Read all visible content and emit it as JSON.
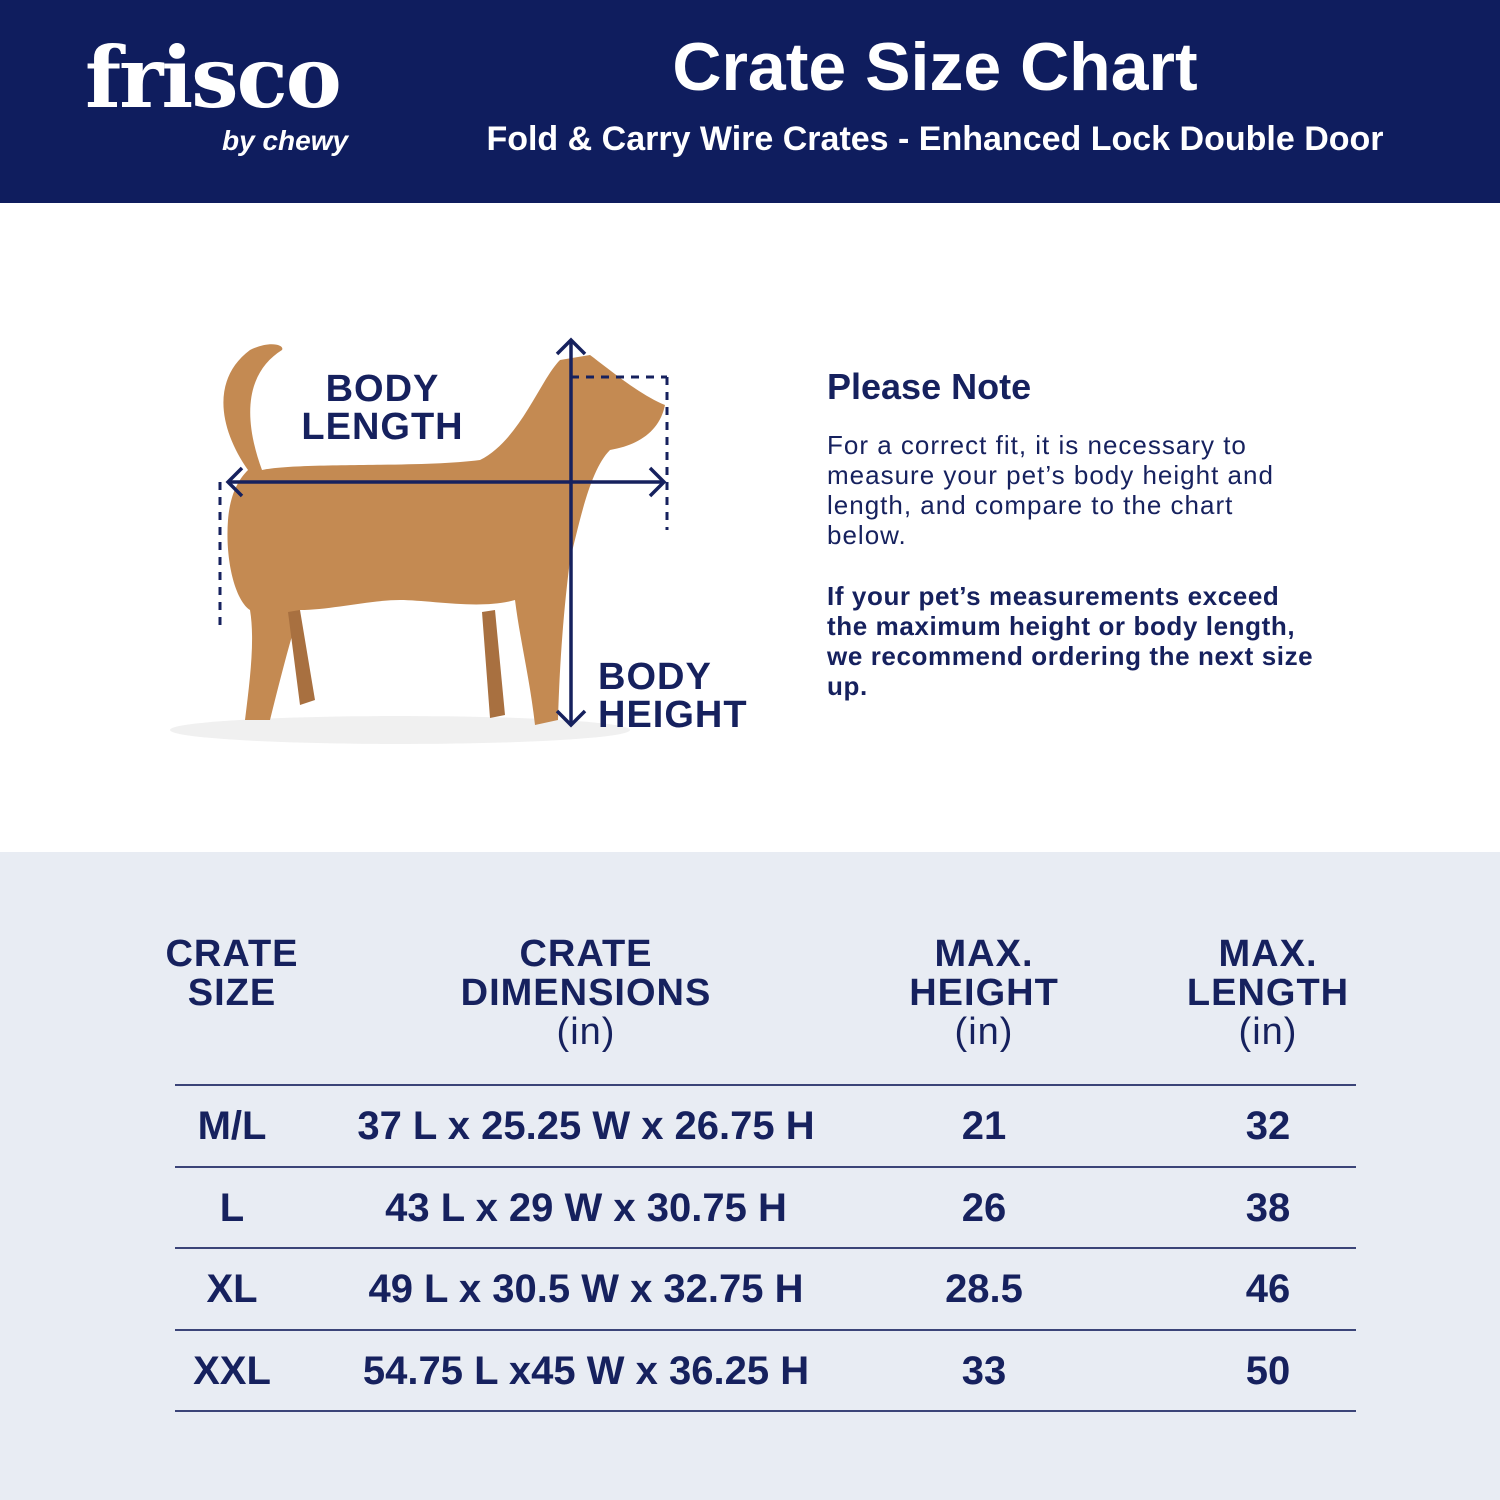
{
  "header": {
    "logo": "frisco",
    "logo_sub": "by chewy",
    "title": "Crate Size Chart",
    "subtitle": "Fold & Carry Wire Crates - Enhanced Lock Double Door"
  },
  "diagram": {
    "length_label": [
      "BODY",
      "LENGTH"
    ],
    "height_label": [
      "BODY",
      "HEIGHT"
    ]
  },
  "note": {
    "title": "Please Note",
    "text": "For a correct fit, it is necessary to measure your pet’s body height and length, and compare to the chart below.",
    "emphasis": "If your pet’s measurements exceed the maximum height or body length, we recommend ordering the next size up."
  },
  "table": {
    "headers": [
      {
        "lines": [
          "CRATE",
          "SIZE"
        ]
      },
      {
        "lines": [
          "CRATE",
          "DIMENSIONS"
        ],
        "unit": "(in)"
      },
      {
        "lines": [
          "MAX.",
          "HEIGHT"
        ],
        "unit": "(in)"
      },
      {
        "lines": [
          "MAX.",
          "LENGTH"
        ],
        "unit": "(in)"
      }
    ],
    "rows": [
      [
        "M/L",
        "37 L x 25.25 W x 26.75 H",
        21,
        32
      ],
      [
        "L",
        "43 L x 29 W x 30.75 H",
        26,
        38
      ],
      [
        "XL",
        "49 L x 30.5 W x 32.75 H",
        28.5,
        46
      ],
      [
        "XXL",
        "54.75 L x45 W x 36.25 H",
        33,
        50
      ]
    ]
  }
}
